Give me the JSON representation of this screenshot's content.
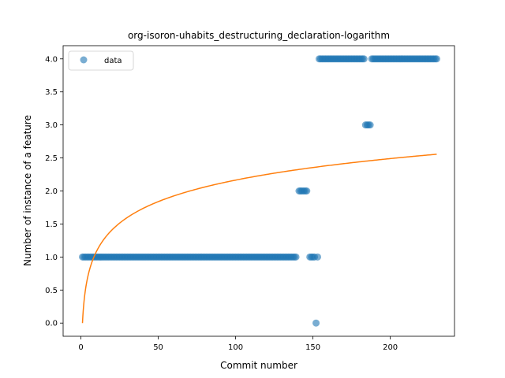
{
  "chart_data": {
    "type": "scatter",
    "title": "org-isoron-uhabits_destructuring_declaration-logarithm",
    "xlabel": "Commit number",
    "ylabel": "Number of instance of a feature",
    "xlim": [
      -11.5,
      241.5
    ],
    "ylim": [
      -0.2,
      4.2
    ],
    "xticks": [
      0,
      50,
      100,
      150,
      200
    ],
    "yticks": [
      0.0,
      0.5,
      1.0,
      1.5,
      2.0,
      2.5,
      3.0,
      3.5,
      4.0
    ],
    "xtick_labels": [
      "0",
      "50",
      "100",
      "150",
      "200"
    ],
    "ytick_labels": [
      "0.0",
      "0.5",
      "1.0",
      "1.5",
      "2.0",
      "2.5",
      "3.0",
      "3.5",
      "4.0"
    ],
    "grid": false,
    "legend_position": "top-left",
    "series": [
      {
        "name": "data",
        "kind": "scatter",
        "color": "#1f77b4",
        "segments": [
          {
            "x_start": 1,
            "x_end": 139,
            "y": 1
          },
          {
            "x_start": 141,
            "x_end": 146,
            "y": 2
          },
          {
            "x_start": 148,
            "x_end": 151,
            "y": 1
          },
          {
            "x_start": 152,
            "x_end": 152,
            "y": 0
          },
          {
            "x_start": 153,
            "x_end": 153,
            "y": 1
          },
          {
            "x_start": 154,
            "x_end": 183,
            "y": 4
          },
          {
            "x_start": 184,
            "x_end": 187,
            "y": 3
          },
          {
            "x_start": 188,
            "x_end": 230,
            "y": 4
          }
        ]
      },
      {
        "name": "",
        "kind": "line",
        "color": "#ff7f0e",
        "model": "logarithmic",
        "equation": "y = 0.47 * ln(x)",
        "a": 0.47,
        "b": 0.0,
        "x_range": [
          1,
          230
        ]
      }
    ]
  }
}
